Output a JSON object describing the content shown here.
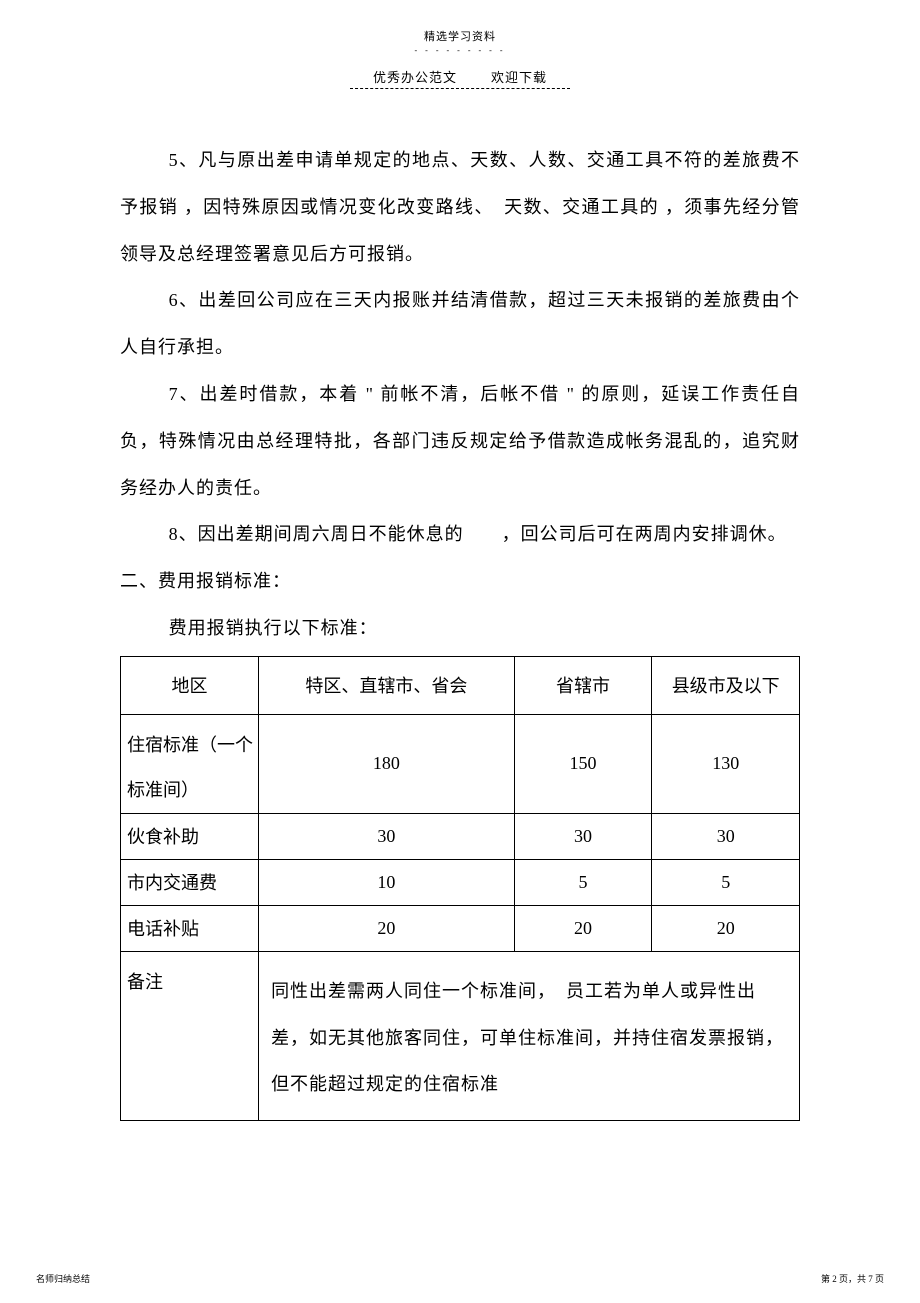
{
  "header": {
    "top": "精选学习资料",
    "dots": "- - - - - - - - -",
    "left": "优秀办公范文",
    "right": "欢迎下载"
  },
  "paragraphs": {
    "p5": "5、凡与原出差申请单规定的地点、天数、人数、交通工具不符的差旅费不予报销 ，因特殊原因或情况变化改变路线、　天数、交通工具的 ，须事先经分管领导及总经理签署意见后方可报销。",
    "p6": "6、出差回公司应在三天内报账并结清借款，超过三天未报销的差旅费由个人自行承担。",
    "p7": "7、出差时借款，本着 \" 前帐不清，后帐不借 \" 的原则，延误工作责任自负，特殊情况由总经理特批，各部门违反规定给予借款造成帐务混乱的，追究财务经办人的责任。",
    "p8": "8、因出差期间周六周日不能休息的　　，回公司后可在两周内安排调休。"
  },
  "section2": {
    "title": "二、费用报销标准：",
    "subtitle": "费用报销执行以下标准："
  },
  "table": {
    "headers": {
      "c1": "地区",
      "c2": "特区、直辖市、省会",
      "c3": "省辖市",
      "c4": "县级市及以下"
    },
    "rows": {
      "r1": {
        "label": "住宿标准（一个标准间）",
        "v2": "180",
        "v3": "150",
        "v4": "130"
      },
      "r2": {
        "label": "伙食补助",
        "v2": "30",
        "v3": "30",
        "v4": "30"
      },
      "r3": {
        "label": "市内交通费",
        "v2": "10",
        "v3": "5",
        "v4": "5"
      },
      "r4": {
        "label": "电话补贴",
        "v2": "20",
        "v3": "20",
        "v4": "20"
      },
      "r5": {
        "label": "备注",
        "note": "同性出差需两人同住一个标准间，　员工若为单人或异性出差，如无其他旅客同住，可单住标准间，并持住宿发票报销，但不能超过规定的住宿标准"
      }
    }
  },
  "footer": {
    "left": "名师归纳总结",
    "right": "第 2 页，共 7 页"
  }
}
